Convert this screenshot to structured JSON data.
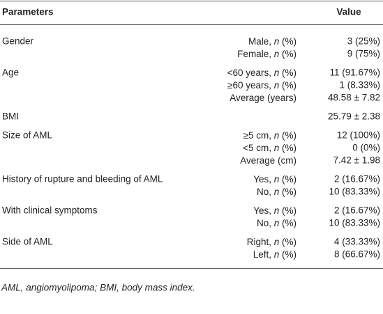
{
  "table": {
    "header": [
      "Parameters",
      "Value"
    ],
    "groups": [
      {
        "param": "Gender",
        "rows": [
          {
            "sub": [
              "Male, ",
              "n",
              " (%)"
            ],
            "value": "3 (25%)"
          },
          {
            "sub": [
              "Female, ",
              "n",
              " (%)"
            ],
            "value": "9 (75%)"
          }
        ]
      },
      {
        "param": "Age",
        "rows": [
          {
            "sub": [
              "<60 years, ",
              "n",
              " (%)"
            ],
            "value": "11 (91.67%)"
          },
          {
            "sub": [
              "≥60 years, ",
              "n",
              " (%)"
            ],
            "value": "1 (8.33%)"
          },
          {
            "sub": [
              "Average (years)"
            ],
            "value": "48.58 ± 7.82"
          }
        ]
      },
      {
        "param": "BMI",
        "rows": [
          {
            "value": "25.79 ± 2.38"
          }
        ]
      },
      {
        "param": "Size of AML",
        "rows": [
          {
            "sub": [
              "≥5 cm, ",
              "n",
              " (%)"
            ],
            "value": "12 (100%)"
          },
          {
            "sub": [
              "<5 cm, ",
              "n",
              " (%)"
            ],
            "value": "0 (0%)"
          },
          {
            "sub": [
              "Average (cm)"
            ],
            "value": "7.42 ± 1.98"
          }
        ]
      },
      {
        "param": "History of rupture and bleeding of AML",
        "rows": [
          {
            "sub": [
              "Yes, ",
              "n",
              " (%)"
            ],
            "value": "2 (16.67%)"
          },
          {
            "sub": [
              "No, ",
              "n",
              " (%)"
            ],
            "value": "10 (83.33%)"
          }
        ]
      },
      {
        "param": "With clinical symptoms",
        "rows": [
          {
            "sub": [
              "Yes, ",
              "n",
              " (%)"
            ],
            "value": "2 (16.67%)"
          },
          {
            "sub": [
              "No, ",
              "n",
              " (%)"
            ],
            "value": "10 (83.33%)"
          }
        ]
      },
      {
        "param": "Side of AML",
        "rows": [
          {
            "sub": [
              "Right, ",
              "n",
              " (%)"
            ],
            "value": "4 (33.33%)"
          },
          {
            "sub": [
              "Left, ",
              "n",
              " (%)"
            ],
            "value": "8 (66.67%)"
          }
        ]
      }
    ],
    "footnote": "AML, angiomyolipoma; BMI, body mass index."
  }
}
